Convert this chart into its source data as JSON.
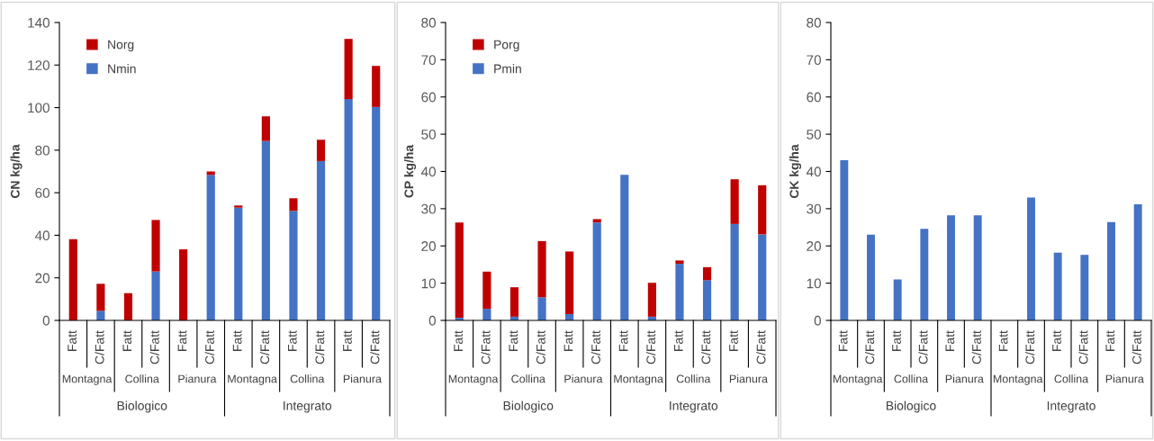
{
  "chart_data": [
    {
      "type": "bar",
      "stacked": true,
      "ylabel": "CN kg/ha",
      "categories": [
        "Fatt",
        "C/Fatt",
        "Fatt",
        "C/Fatt",
        "Fatt",
        "C/Fatt",
        "Fatt",
        "C/Fatt",
        "Fatt",
        "C/Fatt",
        "Fatt",
        "C/Fatt"
      ],
      "annotations": [
        "Montagna",
        "Collina",
        "Pianura",
        "Montagna",
        "Collina",
        "Pianura",
        "Biologico",
        "Integrato"
      ],
      "ylim": [
        0,
        140
      ],
      "yticks": [
        0,
        20,
        40,
        60,
        80,
        100,
        120,
        140
      ],
      "grid": false,
      "legend": "top left",
      "series": [
        {
          "name": "Nmin",
          "color": "#4472c4",
          "values": [
            0,
            4.5,
            0,
            23,
            0,
            68.4,
            53,
            84.3,
            51.5,
            74.9,
            104,
            100.3
          ]
        },
        {
          "name": "Norg",
          "color": "#c00000",
          "values": [
            38.2,
            12.7,
            12.8,
            24.2,
            33.4,
            1.6,
            1,
            11.6,
            5.9,
            10,
            28.3,
            19.3
          ]
        }
      ]
    },
    {
      "type": "bar",
      "stacked": true,
      "ylabel": "CP kg/ha",
      "categories": [
        "Fatt",
        "C/Fatt",
        "Fatt",
        "C/Fatt",
        "Fatt",
        "C/Fatt",
        "Fatt",
        "C/Fatt",
        "Fatt",
        "C/Fatt",
        "Fatt",
        "C/Fatt"
      ],
      "annotations": [
        "Montagna",
        "Collina",
        "Pianura",
        "Montagna",
        "Collina",
        "Pianura",
        "Biologico",
        "Integrato"
      ],
      "ylim": [
        0,
        80
      ],
      "yticks": [
        0,
        10,
        20,
        30,
        40,
        50,
        60,
        70,
        80
      ],
      "grid": false,
      "legend": "top left",
      "series": [
        {
          "name": "Pmin",
          "color": "#4472c4",
          "values": [
            0.7,
            3.1,
            1,
            6.2,
            1.7,
            26.3,
            39.1,
            1,
            15.2,
            10.8,
            25.9,
            23.1
          ]
        },
        {
          "name": "Porg",
          "color": "#c00000",
          "values": [
            25.6,
            10,
            7.9,
            15.1,
            16.8,
            0.9,
            null,
            9.1,
            0.9,
            3.5,
            12,
            13.2
          ]
        }
      ]
    },
    {
      "type": "bar",
      "ylabel": "CK kg/ha",
      "categories": [
        "Fatt",
        "C/Fatt",
        "Fatt",
        "C/Fatt",
        "Fatt",
        "C/Fatt",
        "Fatt",
        "C/Fatt",
        "Fatt",
        "C/Fatt",
        "Fatt",
        "C/Fatt"
      ],
      "annotations": [
        "Montagna",
        "Collina",
        "Pianura",
        "Montagna",
        "Collina",
        "Pianura",
        "Biologico",
        "Integrato"
      ],
      "ylim": [
        0,
        80
      ],
      "yticks": [
        0,
        10,
        20,
        30,
        40,
        50,
        60,
        70,
        80
      ],
      "grid": false,
      "legend": false,
      "series": [
        {
          "color": "#4472c4",
          "values": [
            43,
            23,
            11,
            24.6,
            28.2,
            28.2,
            null,
            33,
            18.2,
            17.6,
            26.4,
            31.2
          ]
        }
      ]
    }
  ]
}
